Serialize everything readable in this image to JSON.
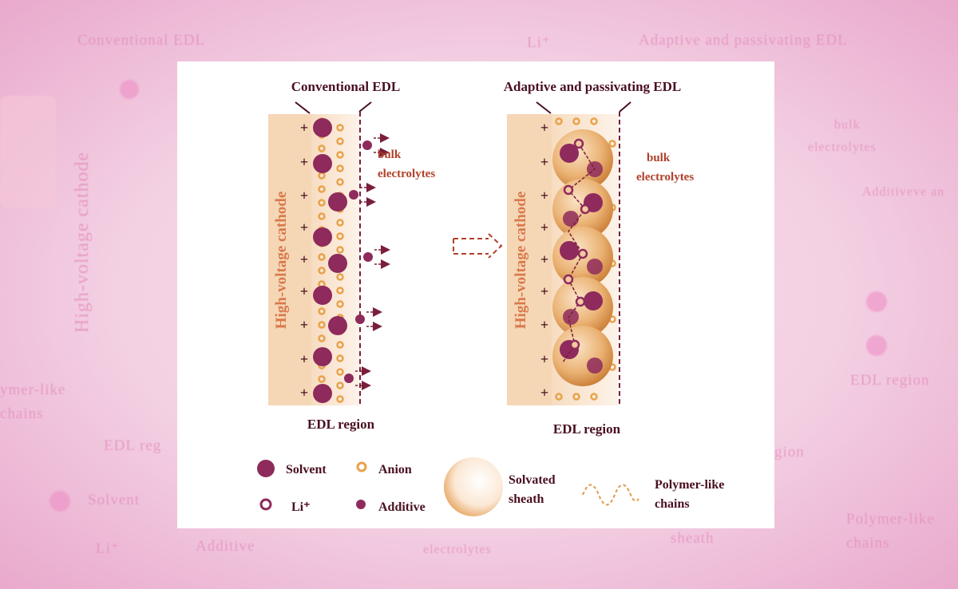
{
  "background_labels": {
    "conventional": "Conventional EDL",
    "li": "Li⁺",
    "adaptive": "Adaptive and passivating EDL",
    "cathode": "High-voltage cathode",
    "bulk1": "bulk",
    "bulk2": "electrolytes",
    "additive_r": "Additiveve an",
    "edl_r": "EDL region",
    "polymer_l1": "ymer-like",
    "polymer_l2": "chains",
    "edl_l": "EDL reg",
    "solvent": "Solvent",
    "li2": "Li⁺",
    "additive": "Additive",
    "electrolytes_b": "electrolytes",
    "sheath_b": "sheath",
    "gion": "gion",
    "polymer_r1": "Polymer-like",
    "polymer_r2": "chains"
  },
  "left_panel": {
    "title": "Conventional EDL",
    "cathode_label": "High-voltage cathode",
    "bulk_label_1": "bulk",
    "bulk_label_2": "electrolytes",
    "region_label": "EDL region"
  },
  "right_panel": {
    "title": "Adaptive and passivating EDL",
    "cathode_label": "High-voltage cathode",
    "bulk_label_1": "bulk",
    "bulk_label_2": "electrolytes",
    "region_label": "EDL region"
  },
  "legend": {
    "solvent": "Solvent",
    "anion": "Anion",
    "li": "Li⁺",
    "additive": "Additive",
    "sheath_1": "Solvated",
    "sheath_2": "sheath",
    "chains_1": "Polymer-like",
    "chains_2": "chains"
  },
  "colors": {
    "solvent": "#8e2a5c",
    "anion": "#e8a24a",
    "text_dark": "#4a1020",
    "text_red": "#b0402a",
    "cathode": "#f5d7b6"
  }
}
